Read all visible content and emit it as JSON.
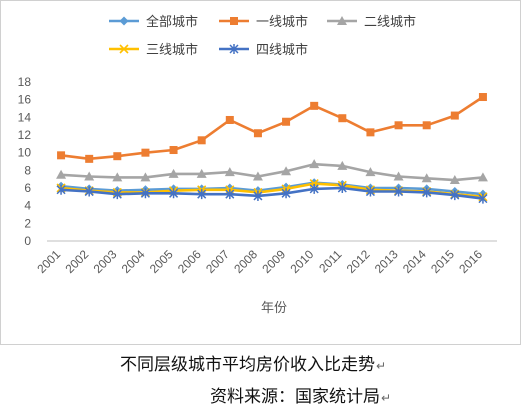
{
  "chart_data": {
    "type": "line",
    "categories": [
      "2001",
      "2002",
      "2003",
      "2004",
      "2005",
      "2006",
      "2007",
      "2008",
      "2009",
      "2010",
      "2011",
      "2012",
      "2013",
      "2014",
      "2015",
      "2016"
    ],
    "xlabel": "年份",
    "ylabel": "",
    "ylim": [
      0,
      18
    ],
    "yticks": [
      "0",
      "2",
      "4",
      "6",
      "8",
      "10",
      "12",
      "14",
      "16",
      "18"
    ],
    "grid": false,
    "legend_position": "top",
    "series": [
      {
        "name": "全部城市",
        "color": "#5b9bd5",
        "marker": "diamond",
        "values": [
          6.2,
          5.9,
          5.7,
          5.8,
          5.9,
          5.9,
          6.0,
          5.7,
          6.1,
          6.6,
          6.4,
          6.0,
          6.0,
          5.9,
          5.6,
          5.3
        ]
      },
      {
        "name": "一线城市",
        "color": "#ed7d31",
        "marker": "square",
        "values": [
          9.7,
          9.3,
          9.6,
          10.0,
          10.3,
          11.4,
          13.7,
          12.2,
          13.5,
          15.3,
          13.9,
          12.3,
          13.1,
          13.1,
          14.2,
          16.3
        ]
      },
      {
        "name": "二线城市",
        "color": "#a5a5a5",
        "marker": "triangle",
        "values": [
          7.5,
          7.3,
          7.2,
          7.2,
          7.6,
          7.6,
          7.8,
          7.3,
          7.9,
          8.7,
          8.5,
          7.8,
          7.3,
          7.1,
          6.9,
          7.2
        ]
      },
      {
        "name": "三线城市",
        "color": "#ffc000",
        "marker": "x",
        "values": [
          6.0,
          5.7,
          5.5,
          5.5,
          5.7,
          5.8,
          5.8,
          5.5,
          5.9,
          6.5,
          6.3,
          5.8,
          5.7,
          5.6,
          5.3,
          5.0
        ]
      },
      {
        "name": "四线城市",
        "color": "#4472c4",
        "marker": "asterisk",
        "values": [
          5.8,
          5.6,
          5.3,
          5.4,
          5.4,
          5.3,
          5.3,
          5.1,
          5.4,
          5.9,
          6.0,
          5.6,
          5.6,
          5.5,
          5.2,
          4.8
        ]
      }
    ]
  },
  "captions": {
    "title": "不同层级城市平均房价收入比走势",
    "source": "资料来源：国家统计局",
    "return_mark": "↵"
  }
}
